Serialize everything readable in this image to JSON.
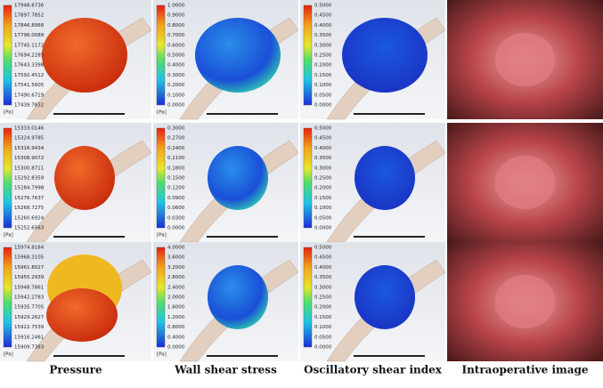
{
  "columns": [
    "Pressure",
    "Wall shear stress",
    "Oscillatory shear index",
    "Intraoperative image"
  ],
  "rows": [
    {
      "panels": [
        {
          "unit": "[Pa]",
          "labels": [
            "17948.6736",
            "17897.7852",
            "17846.8968",
            "17796.0089",
            "17745.1172",
            "17694.2285",
            "17643.3398",
            "17592.4512",
            "17541.5605",
            "17490.6719",
            "17439.7832"
          ]
        },
        {
          "unit": "[Pa]",
          "labels": [
            "1.0000",
            "0.9000",
            "0.8000",
            "0.7000",
            "0.6000",
            "0.5000",
            "0.4000",
            "0.3000",
            "0.2000",
            "0.1000",
            "0.0000"
          ]
        },
        {
          "labels": [
            "0.5000",
            "0.4500",
            "0.4000",
            "0.3500",
            "0.3000",
            "0.2500",
            "0.2000",
            "0.1500",
            "0.1000",
            "0.0500",
            "0.0000"
          ]
        }
      ]
    },
    {
      "panels": [
        {
          "unit": "[Pa]",
          "labels": [
            "15333.0146",
            "15324.9785",
            "15316.9434",
            "15308.9072",
            "15300.8711",
            "15292.8359",
            "15284.7998",
            "15276.7637",
            "15268.7275",
            "15260.6924",
            "15252.6563"
          ]
        },
        {
          "unit": "[Pa]",
          "labels": [
            "0.3000",
            "0.2700",
            "0.2400",
            "0.2100",
            "0.1800",
            "0.1500",
            "0.1200",
            "0.0900",
            "0.0600",
            "0.0300",
            "0.0000"
          ]
        },
        {
          "labels": [
            "0.5000",
            "0.4500",
            "0.4000",
            "0.3500",
            "0.3000",
            "0.2500",
            "0.2000",
            "0.1500",
            "0.1000",
            "0.0500",
            "0.0000"
          ]
        }
      ]
    },
    {
      "panels": [
        {
          "unit": "[Pa]",
          "labels": [
            "15974.8184",
            "15968.3105",
            "15961.8027",
            "15955.2939",
            "15948.7861",
            "15942.2783",
            "15935.7705",
            "15929.2627",
            "15922.7539",
            "15916.2461",
            "15909.7383"
          ]
        },
        {
          "unit": "[Pa]",
          "labels": [
            "4.0000",
            "3.6000",
            "3.2000",
            "2.8000",
            "2.4000",
            "2.0000",
            "1.6000",
            "1.2000",
            "0.8000",
            "0.4000",
            "0.0000"
          ]
        },
        {
          "labels": [
            "0.5000",
            "0.4500",
            "0.4000",
            "0.3500",
            "0.3000",
            "0.2500",
            "0.2000",
            "0.1500",
            "0.1000",
            "0.0500",
            "0.0000"
          ]
        }
      ]
    }
  ]
}
